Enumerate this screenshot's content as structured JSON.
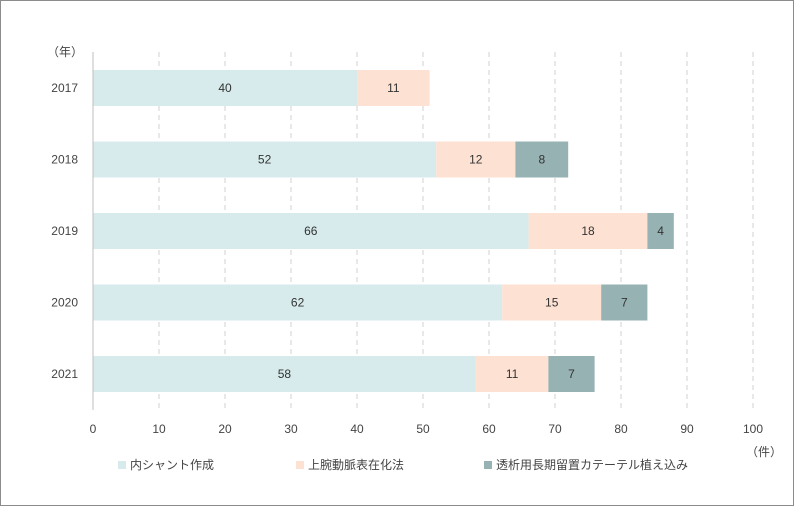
{
  "chart_data": {
    "type": "bar",
    "orientation": "horizontal",
    "stacked": true,
    "categories": [
      "2017",
      "2018",
      "2019",
      "2020",
      "2021"
    ],
    "series": [
      {
        "name": "内シャント作成",
        "color": "#d7eaec",
        "values": [
          40,
          52,
          66,
          62,
          58
        ]
      },
      {
        "name": "上腕動脈表在化法",
        "color": "#fde1d2",
        "values": [
          11,
          12,
          18,
          15,
          11
        ]
      },
      {
        "name": "透析用長期留置カテーテル植え込み",
        "color": "#96b2b3",
        "values": [
          0,
          8,
          4,
          7,
          7
        ]
      }
    ],
    "y_unit_label": "（年）",
    "x_unit_label": "（件）",
    "xlim": [
      0,
      100
    ],
    "xticks": [
      0,
      10,
      20,
      30,
      40,
      50,
      60,
      70,
      80,
      90,
      100
    ],
    "grid": "vertical dashed",
    "legend_position": "bottom",
    "title": "",
    "xlabel": "",
    "ylabel": ""
  }
}
